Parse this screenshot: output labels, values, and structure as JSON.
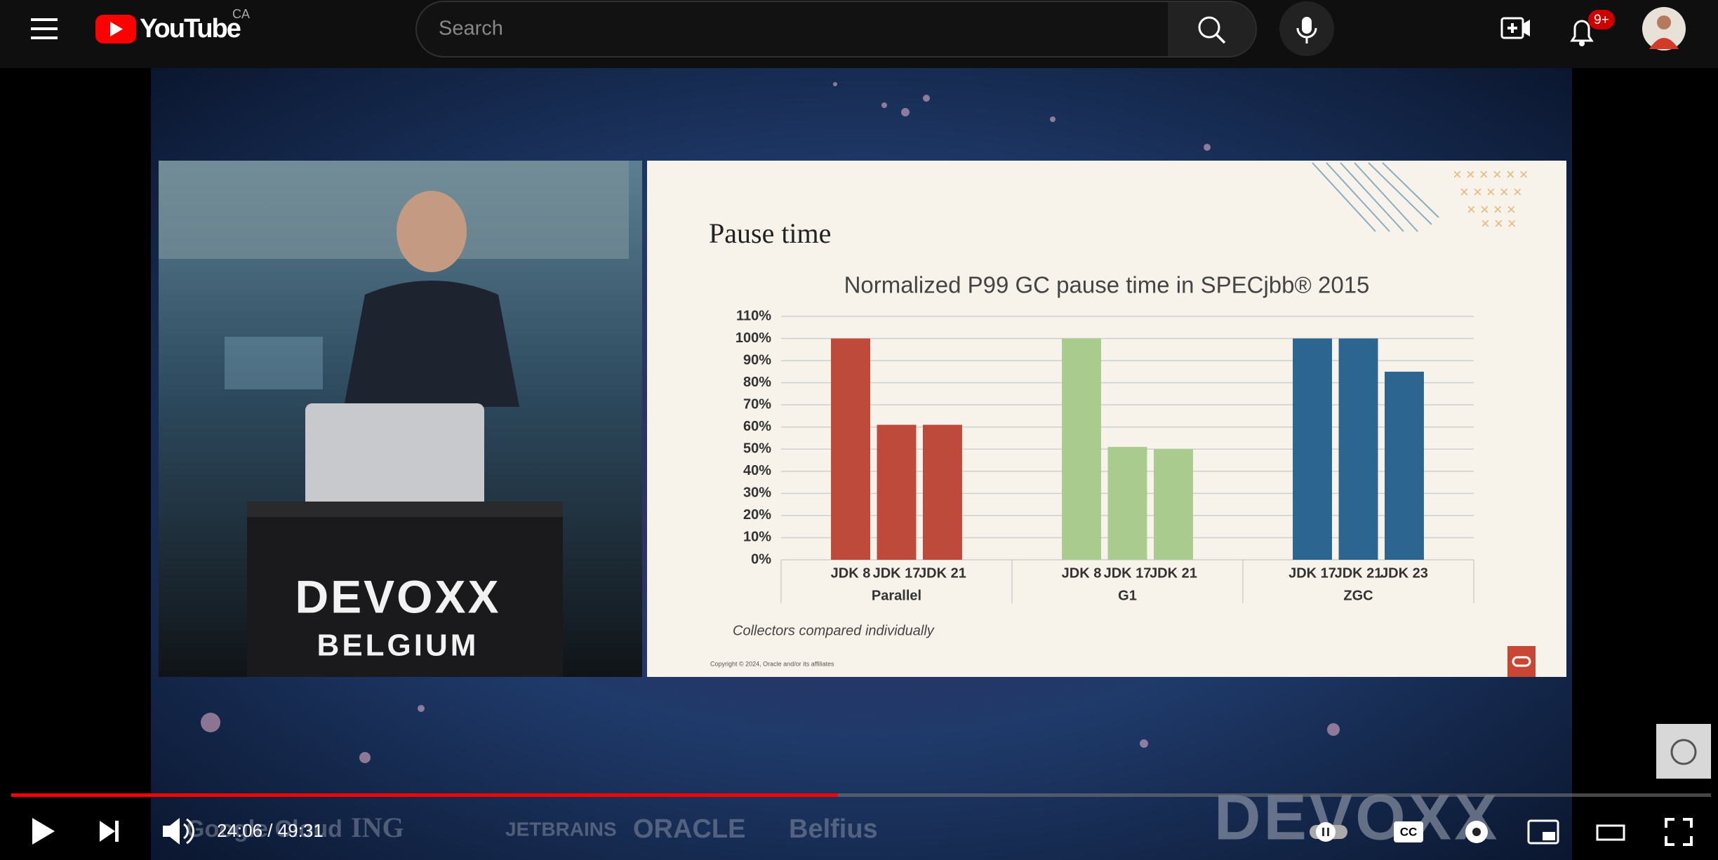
{
  "header": {
    "logo": "YouTube",
    "region": "CA",
    "search_placeholder": "Search",
    "notifications": "9+"
  },
  "video": {
    "sponsors": [
      "Google Cloud",
      "ING",
      "JETBRAINS",
      "ORACLE",
      "Belfius"
    ],
    "stage_logo": "DEVOXX",
    "stage_subtitle": "BELGIUM",
    "banner": "DEVOXX",
    "time": "24:06 / 49:31"
  },
  "slide": {
    "title": "Pause time",
    "note": "Collectors compared individually",
    "copyright": "Copyright © 2024, Oracle and/or its affiliates"
  },
  "chart_data": {
    "type": "bar",
    "title": "Normalized P99 GC pause time in SPECjbb® 2015",
    "groups": [
      {
        "name": "Parallel",
        "color": "#bd4a3a",
        "categories": [
          "JDK 8",
          "JDK 17",
          "JDK 21"
        ],
        "values": [
          100,
          61,
          61
        ]
      },
      {
        "name": "G1",
        "color": "#a9cc8e",
        "categories": [
          "JDK 8",
          "JDK 17",
          "JDK 21"
        ],
        "values": [
          100,
          51,
          50
        ]
      },
      {
        "name": "ZGC",
        "color": "#2c6590",
        "categories": [
          "JDK 17",
          "JDK 21",
          "JDK 23"
        ],
        "values": [
          100,
          100,
          85
        ]
      }
    ],
    "ylim": [
      0,
      110
    ],
    "yticks": [
      {
        "value": 0,
        "label": "0%"
      },
      {
        "value": 10,
        "label": "10%"
      },
      {
        "value": 20,
        "label": "20%"
      },
      {
        "value": 30,
        "label": "30%"
      },
      {
        "value": 40,
        "label": "40%"
      },
      {
        "value": 50,
        "label": "50%"
      },
      {
        "value": 60,
        "label": "60%"
      },
      {
        "value": 70,
        "label": "70%"
      },
      {
        "value": 80,
        "label": "80%"
      },
      {
        "value": 90,
        "label": "90%"
      },
      {
        "value": 100,
        "label": "100%"
      },
      {
        "value": 110,
        "label": "110%"
      }
    ],
    "grid": true
  }
}
